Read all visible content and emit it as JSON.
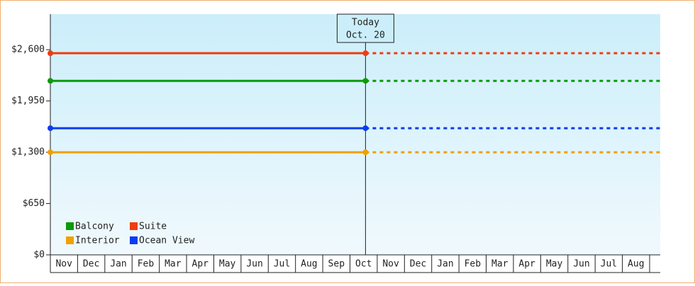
{
  "chart_data": {
    "type": "line",
    "categories": [
      "Nov",
      "Dec",
      "Jan",
      "Feb",
      "Mar",
      "Apr",
      "May",
      "Jun",
      "Jul",
      "Aug",
      "Sep",
      "Oct",
      "Nov",
      "Dec",
      "Jan",
      "Feb",
      "Mar",
      "Apr",
      "May",
      "Jun",
      "Jul",
      "Aug"
    ],
    "series": [
      {
        "name": "Balcony",
        "color": "#0a9a0a",
        "values": [
          2205,
          2205,
          2205,
          2205,
          2205,
          2205,
          2205,
          2205,
          2205,
          2205,
          2205,
          2205,
          null,
          null,
          null,
          null,
          null,
          null,
          null,
          null,
          null,
          null
        ]
      },
      {
        "name": "Suite",
        "color": "#f03c10",
        "values": [
          2555,
          2555,
          2555,
          2555,
          2555,
          2555,
          2555,
          2555,
          2555,
          2555,
          2555,
          2555,
          null,
          null,
          null,
          null,
          null,
          null,
          null,
          null,
          null,
          null
        ]
      },
      {
        "name": "Interior",
        "color": "#f0a000",
        "values": [
          1300,
          1300,
          1300,
          1300,
          1300,
          1300,
          1300,
          1300,
          1300,
          1300,
          1300,
          1300,
          null,
          null,
          null,
          null,
          null,
          null,
          null,
          null,
          null,
          null
        ]
      },
      {
        "name": "Ocean View",
        "color": "#0a3cf0",
        "values": [
          1605,
          1605,
          1605,
          1605,
          1605,
          1605,
          1605,
          1605,
          1605,
          1605,
          1605,
          1605,
          null,
          null,
          null,
          null,
          null,
          null,
          null,
          null,
          null,
          null
        ]
      }
    ],
    "ylim": [
      0,
      3050
    ],
    "yticks": [
      {
        "value": 0,
        "label": "$0"
      },
      {
        "value": 650,
        "label": "$650"
      },
      {
        "value": 1300,
        "label": "$1,300"
      },
      {
        "value": 1950,
        "label": "$1,950"
      },
      {
        "value": 2600,
        "label": "$2,600"
      }
    ],
    "annotation": {
      "lines": [
        "Today",
        "Oct. 20"
      ]
    },
    "legend": "bottom-left"
  }
}
